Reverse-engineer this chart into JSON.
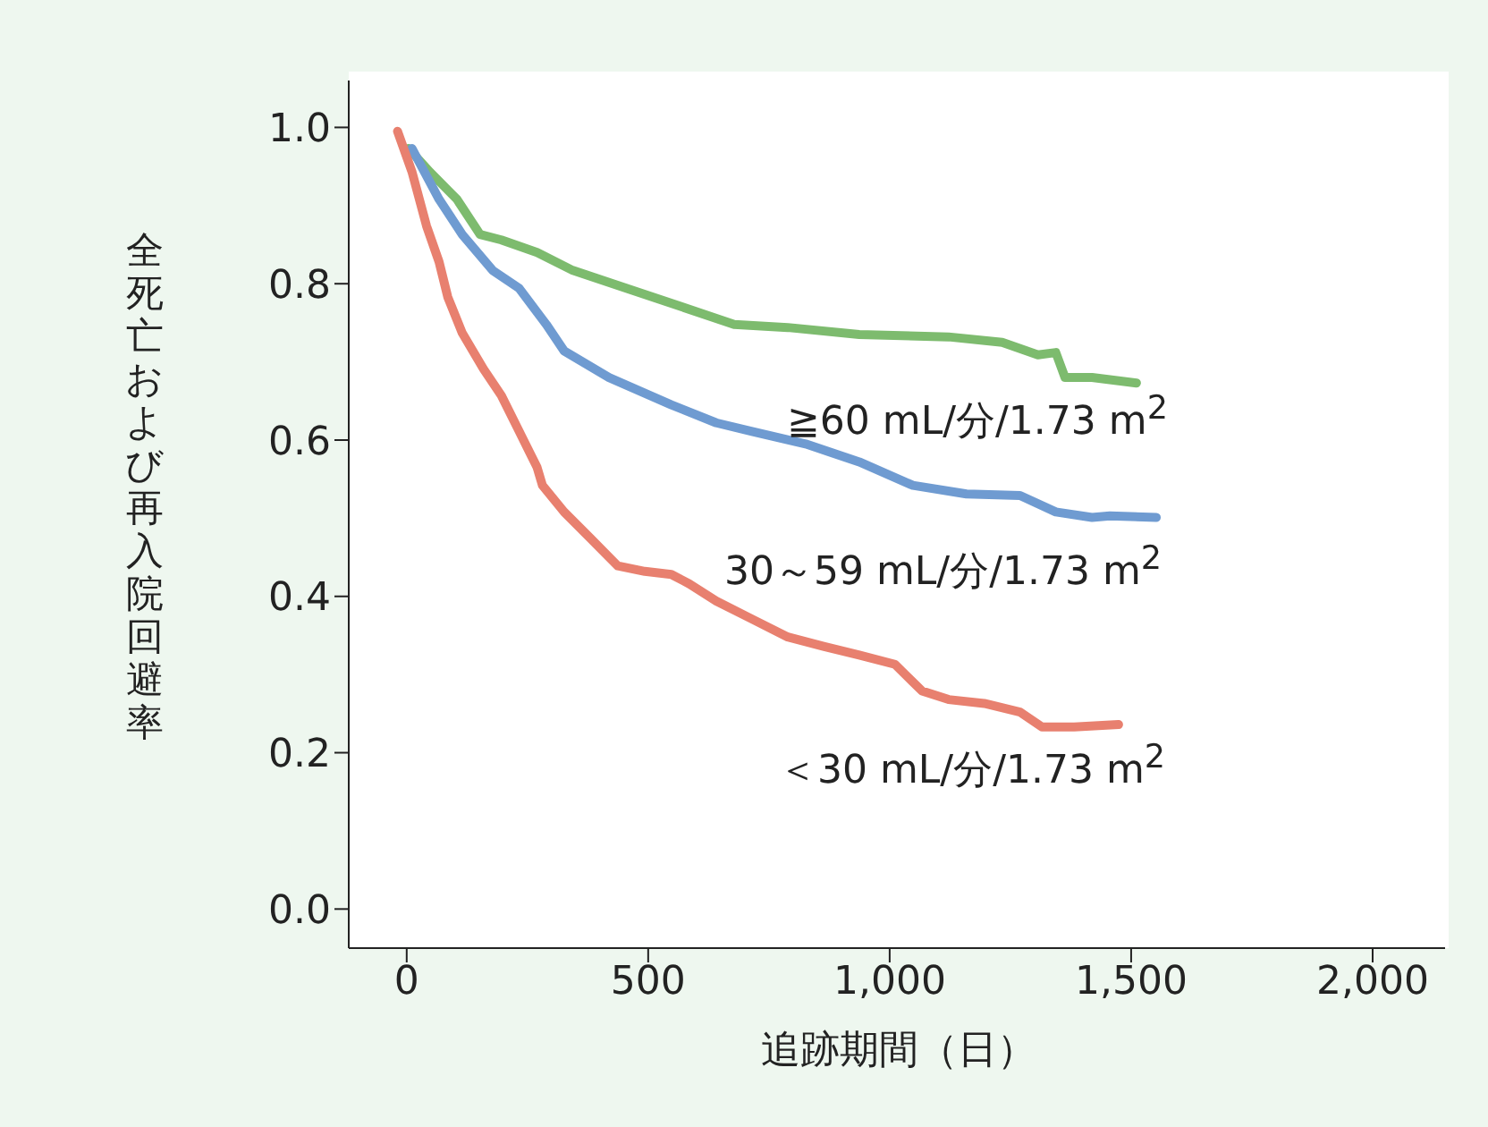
{
  "chart_data": {
    "type": "line",
    "xlabel": "追跡期間（日）",
    "ylabel": "全死亡および再入院回避率",
    "xlim": [
      -120,
      2150
    ],
    "xticks": [
      0,
      500,
      {
        "value": 1000,
        "label": "1,000"
      },
      {
        "value": 1500,
        "label": "1,500"
      },
      {
        "value": 2000,
        "label": "2,000"
      }
    ],
    "ylim": [
      -0.05,
      1.06
    ],
    "yticks": [
      {
        "value": 0,
        "label": "0.0"
      },
      {
        "value": 0.2,
        "label": "0.2"
      },
      {
        "value": 0.4,
        "label": "0.4"
      },
      {
        "value": 0.6,
        "label": "0.6"
      },
      {
        "value": 0.8,
        "label": "0.8"
      },
      {
        "value": 1,
        "label": "1.0"
      }
    ],
    "grid": false,
    "legend": false,
    "marker": "none",
    "line_style": "solid",
    "series": [
      {
        "name": "≧60 mL/分/1.73 m$^{2}$",
        "color": "#7dbb6e",
        "x": [
          4,
          48,
          104,
          152,
          196,
          270,
          344,
          456,
          567,
          678,
          789,
          937,
          1122,
          1233,
          1307,
          1344,
          1363,
          1419,
          1511
        ],
        "values": [
          0.973,
          0.943,
          0.908,
          0.863,
          0.856,
          0.84,
          0.817,
          0.794,
          0.771,
          0.748,
          0.744,
          0.735,
          0.732,
          0.725,
          0.709,
          0.712,
          0.68,
          0.68,
          0.673
        ]
      },
      {
        "name": "30～59 mL/分/1.73 m$^{2}$",
        "color": "#6f9bd1",
        "x": [
          11,
          67,
          115,
          178,
          233,
          289,
          326,
          419,
          548,
          641,
          715,
          826,
          937,
          1048,
          1159,
          1270,
          1344,
          1419,
          1456,
          1552
        ],
        "values": [
          0.973,
          0.908,
          0.863,
          0.817,
          0.794,
          0.748,
          0.714,
          0.68,
          0.645,
          0.622,
          0.611,
          0.595,
          0.572,
          0.542,
          0.531,
          0.529,
          0.508,
          0.501,
          0.503,
          0.501
        ]
      },
      {
        "name": "＜30 mL/分/1.73 m$^{2}$",
        "color": "#e8806f",
        "x": [
          -19,
          11,
          41,
          67,
          85,
          115,
          159,
          196,
          233,
          270,
          281,
          326,
          381,
          437,
          493,
          548,
          585,
          641,
          715,
          789,
          863,
          937,
          1011,
          1067,
          1122,
          1196,
          1270,
          1315,
          1382,
          1474
        ],
        "values": [
          0.995,
          0.943,
          0.874,
          0.828,
          0.783,
          0.737,
          0.691,
          0.657,
          0.611,
          0.565,
          0.542,
          0.508,
          0.474,
          0.439,
          0.432,
          0.428,
          0.416,
          0.394,
          0.371,
          0.348,
          0.336,
          0.325,
          0.313,
          0.279,
          0.268,
          0.263,
          0.252,
          0.233,
          0.233,
          0.236
        ]
      }
    ]
  }
}
